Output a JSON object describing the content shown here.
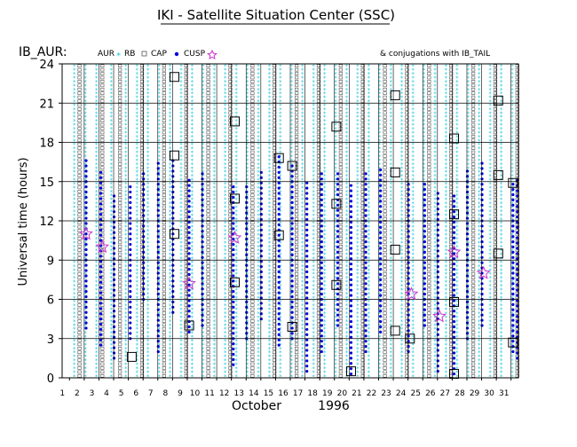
{
  "chart_data": {
    "type": "scatter",
    "title": "IKI - Satellite Situation Center (SSC)",
    "station_label": "IB_AUR:",
    "conjugations_label": "& conjugations with IB_TAIL",
    "ylabel": "Universal time (hours)",
    "xlabel_month": "October",
    "xlabel_year": "1996",
    "ylim": [
      0,
      24
    ],
    "xlim": [
      1,
      31
    ],
    "grid": true,
    "y_ticks": [
      0,
      3,
      6,
      9,
      12,
      15,
      18,
      21,
      24
    ],
    "x_ticks": [
      1,
      2,
      3,
      4,
      5,
      6,
      7,
      8,
      9,
      10,
      11,
      12,
      13,
      14,
      15,
      16,
      17,
      18,
      19,
      20,
      21,
      22,
      23,
      24,
      25,
      26,
      27,
      28,
      29,
      30,
      31
    ],
    "legend_position": "top",
    "colors": {
      "aur": "#20c8d8",
      "rb": "#555555",
      "cap": "#777777",
      "cusp": "#0000dd",
      "conjugation": "#cc33cc",
      "grid": "#000000"
    },
    "series": [
      {
        "name": "AUR",
        "marker": "star",
        "color": "#20c8d8",
        "bands": [
          [
            1,
            0,
            24
          ],
          [
            1.75,
            0,
            24
          ],
          [
            2.5,
            0,
            24
          ],
          [
            3.5,
            0,
            24
          ],
          [
            4.5,
            0,
            24
          ],
          [
            5.25,
            0,
            24
          ],
          [
            6,
            0,
            24
          ],
          [
            6.75,
            0,
            24
          ],
          [
            7.5,
            0,
            24
          ],
          [
            8.25,
            0,
            24
          ],
          [
            9,
            0,
            24
          ],
          [
            9.75,
            0,
            24
          ],
          [
            10.5,
            0,
            24
          ],
          [
            11.25,
            0,
            24
          ],
          [
            12,
            0,
            24
          ],
          [
            12.75,
            0,
            24
          ],
          [
            13.5,
            0,
            24
          ],
          [
            14.25,
            0,
            24
          ],
          [
            15,
            0,
            24
          ],
          [
            15.75,
            0,
            24
          ],
          [
            16.5,
            0,
            24
          ],
          [
            17.25,
            0,
            24
          ],
          [
            18,
            0,
            24
          ],
          [
            18.75,
            0,
            24
          ],
          [
            19.5,
            0,
            24
          ],
          [
            20.25,
            0,
            24
          ],
          [
            21,
            0,
            24
          ],
          [
            21.75,
            0,
            24
          ],
          [
            22.5,
            0,
            24
          ],
          [
            23.25,
            0,
            24
          ],
          [
            24,
            0,
            24
          ],
          [
            24.75,
            0,
            24
          ],
          [
            25.5,
            0,
            24
          ],
          [
            26.25,
            0,
            24
          ],
          [
            27,
            0,
            24
          ],
          [
            27.75,
            0,
            24
          ],
          [
            28.5,
            0,
            24
          ],
          [
            29.25,
            0,
            24
          ],
          [
            30,
            0,
            24
          ],
          [
            30.75,
            0,
            24
          ]
        ]
      },
      {
        "name": "RB",
        "marker": "square",
        "color": "#555555",
        "bands": [
          [
            1.35,
            0,
            24
          ],
          [
            2.9,
            0,
            24
          ],
          [
            4.1,
            0,
            24
          ],
          [
            5.6,
            0,
            24
          ],
          [
            7.1,
            0,
            24
          ],
          [
            8.6,
            0,
            24
          ],
          [
            10.1,
            0,
            24
          ],
          [
            11.6,
            0,
            24
          ],
          [
            13.1,
            0,
            24
          ],
          [
            14.6,
            0,
            24
          ],
          [
            16.1,
            0,
            24
          ],
          [
            17.6,
            0,
            24
          ],
          [
            19.1,
            0,
            24
          ],
          [
            20.6,
            0,
            24
          ],
          [
            22.1,
            0,
            24
          ],
          [
            23.6,
            0,
            24
          ],
          [
            25.1,
            0,
            24
          ],
          [
            26.6,
            0,
            24
          ],
          [
            28.1,
            0,
            24
          ],
          [
            29.6,
            0,
            24
          ],
          [
            31.1,
            0,
            24
          ]
        ]
      },
      {
        "name": "CAP",
        "marker": "square",
        "color": "#777777",
        "bands": []
      },
      {
        "name": "CUSP",
        "marker": "dot",
        "color": "#0000dd",
        "bands": [
          [
            1.8,
            3.8,
            16.8
          ],
          [
            2.8,
            2.5,
            16
          ],
          [
            3.7,
            1.5,
            14
          ],
          [
            4.8,
            3,
            15
          ],
          [
            5.7,
            6,
            16
          ],
          [
            6.7,
            2,
            16.5
          ],
          [
            7.7,
            5,
            17
          ],
          [
            8.8,
            3.5,
            15.5
          ],
          [
            9.7,
            4,
            16
          ],
          [
            11.8,
            1,
            15
          ],
          [
            12.7,
            3,
            15
          ],
          [
            13.7,
            4.5,
            16
          ],
          [
            14.9,
            2.5,
            17
          ],
          [
            15.8,
            3,
            16.5
          ],
          [
            16.8,
            0.5,
            15
          ],
          [
            17.8,
            2,
            16
          ],
          [
            18.9,
            4,
            16
          ],
          [
            19.8,
            0.3,
            15
          ],
          [
            20.8,
            2,
            16
          ],
          [
            21.8,
            3.5,
            16
          ],
          [
            23.7,
            2,
            15
          ],
          [
            24.8,
            4,
            15
          ],
          [
            25.7,
            0.5,
            14.5
          ],
          [
            26.8,
            0.3,
            14
          ],
          [
            27.7,
            3,
            16
          ],
          [
            28.7,
            4,
            16.5
          ],
          [
            30.8,
            2,
            15
          ],
          [
            31.1,
            1.5,
            15.5
          ]
        ]
      }
    ],
    "conjugation_points": [
      {
        "day": 1.8,
        "ut": 11.0
      },
      {
        "day": 2.9,
        "ut": 10.0
      },
      {
        "day": 8.8,
        "ut": 7.2
      },
      {
        "day": 11.9,
        "ut": 10.7
      },
      {
        "day": 23.9,
        "ut": 6.4
      },
      {
        "day": 25.8,
        "ut": 4.7
      },
      {
        "day": 26.8,
        "ut": 9.6
      },
      {
        "day": 28.8,
        "ut": 8.0
      }
    ],
    "highlight_boxes": [
      {
        "day": 4.9,
        "ut": 1.6
      },
      {
        "day": 7.8,
        "ut": 23.0
      },
      {
        "day": 7.8,
        "ut": 17.0
      },
      {
        "day": 7.8,
        "ut": 11.0
      },
      {
        "day": 8.8,
        "ut": 4.0
      },
      {
        "day": 11.9,
        "ut": 19.6
      },
      {
        "day": 11.9,
        "ut": 13.7
      },
      {
        "day": 11.9,
        "ut": 7.3
      },
      {
        "day": 14.9,
        "ut": 16.8
      },
      {
        "day": 14.9,
        "ut": 10.9
      },
      {
        "day": 15.8,
        "ut": 16.2
      },
      {
        "day": 15.8,
        "ut": 3.9
      },
      {
        "day": 18.8,
        "ut": 19.2
      },
      {
        "day": 18.8,
        "ut": 13.3
      },
      {
        "day": 18.8,
        "ut": 7.1
      },
      {
        "day": 19.8,
        "ut": 0.5
      },
      {
        "day": 22.8,
        "ut": 21.6
      },
      {
        "day": 22.8,
        "ut": 15.7
      },
      {
        "day": 22.8,
        "ut": 9.8
      },
      {
        "day": 22.8,
        "ut": 3.6
      },
      {
        "day": 23.8,
        "ut": 3.0
      },
      {
        "day": 26.8,
        "ut": 18.3
      },
      {
        "day": 26.8,
        "ut": 12.5
      },
      {
        "day": 26.8,
        "ut": 5.8
      },
      {
        "day": 26.8,
        "ut": 0.3
      },
      {
        "day": 29.8,
        "ut": 21.2
      },
      {
        "day": 29.8,
        "ut": 15.5
      },
      {
        "day": 29.8,
        "ut": 9.5
      },
      {
        "day": 30.8,
        "ut": 14.9
      },
      {
        "day": 30.8,
        "ut": 2.7
      }
    ]
  }
}
